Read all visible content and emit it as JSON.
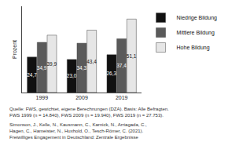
{
  "chart_data": {
    "type": "bar",
    "ylabel": "Prozent",
    "categories": [
      "1999",
      "2009",
      "2019"
    ],
    "series": [
      {
        "name": "Niedrige Bildung",
        "color": "#111111",
        "values": [
          24.7,
          23.0,
          26.3
        ],
        "value_labels": [
          "24,7",
          "23,0",
          "26,3"
        ]
      },
      {
        "name": "Mittlere Bildung",
        "color": "#5a5a5a",
        "values": [
          34.9,
          34.3,
          37.4
        ],
        "value_labels": [
          "34,9",
          "34,3",
          "37,4"
        ]
      },
      {
        "name": "Hohe Bildung",
        "color": "#e6e6e6",
        "values": [
          39.9,
          43.4,
          51.1
        ],
        "value_labels": [
          "39,9",
          "43,4",
          "51,1"
        ]
      }
    ],
    "ylim": [
      0,
      60
    ],
    "tick_labels": "x",
    "grid": false,
    "legend": "right",
    "data_labels": true,
    "source": [
      "Quelle: FWS, gewichtet, eigene Berechnungen (DZA). Basis: Alle Befragten.",
      "FWS 1999 (n = 14.840), FWS 2009 (n = 19.940), FWS 2019 (n = 27.753)."
    ],
    "citation": [
      "Simonson, J., Kelle, N., Kausmann, C., Karnick, N., Arriagada, C.,",
      "Hagen, C., Hameister, N., Huxhold, O., Tesch-Römer, C. (2021).",
      "Freiwilliges Engagement in Deutschland: Zentrale Ergebnisse"
    ]
  }
}
